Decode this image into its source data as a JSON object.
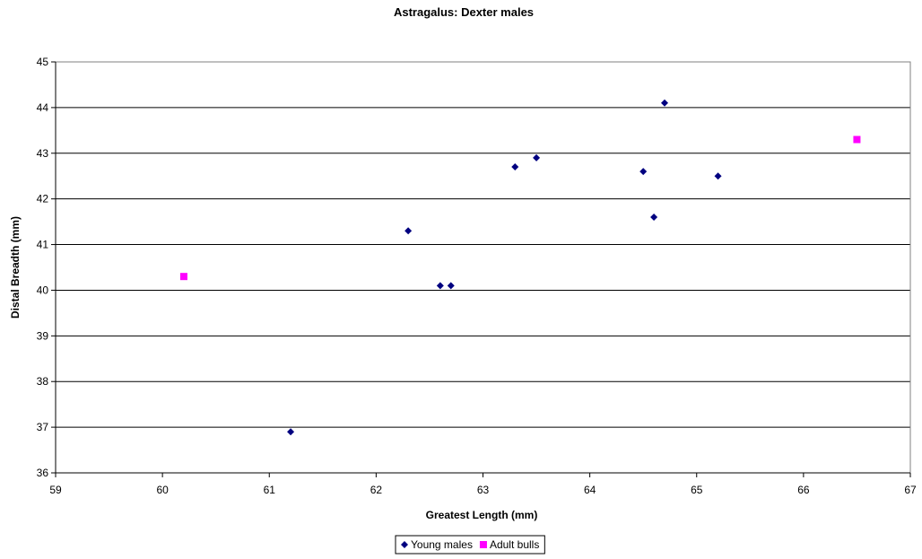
{
  "chart_data": {
    "type": "scatter",
    "title": "Astragalus: Dexter males",
    "xlabel": "Greatest Length (mm)",
    "ylabel": "Distal Breadth (mm)",
    "xlim": [
      59,
      67
    ],
    "ylim": [
      36,
      45
    ],
    "xticks": [
      "59",
      "60",
      "61",
      "62",
      "63",
      "64",
      "65",
      "66",
      "67"
    ],
    "yticks": [
      "36",
      "37",
      "38",
      "39",
      "40",
      "41",
      "42",
      "43",
      "44",
      "45"
    ],
    "grid": "horizontal major gridlines",
    "legend_position": "bottom-center",
    "series": [
      {
        "name": "Young males",
        "marker": "diamond",
        "color": "#000080",
        "points": [
          {
            "x": 61.2,
            "y": 36.9
          },
          {
            "x": 62.3,
            "y": 41.3
          },
          {
            "x": 62.6,
            "y": 40.1
          },
          {
            "x": 62.7,
            "y": 40.1
          },
          {
            "x": 63.3,
            "y": 42.7
          },
          {
            "x": 63.5,
            "y": 42.9
          },
          {
            "x": 64.5,
            "y": 42.6
          },
          {
            "x": 64.6,
            "y": 41.6
          },
          {
            "x": 64.7,
            "y": 44.1
          },
          {
            "x": 65.2,
            "y": 42.5
          }
        ]
      },
      {
        "name": "Adult bulls",
        "marker": "square",
        "color": "#FF00FF",
        "points": [
          {
            "x": 60.2,
            "y": 40.3
          },
          {
            "x": 66.5,
            "y": 43.3
          }
        ]
      }
    ]
  }
}
